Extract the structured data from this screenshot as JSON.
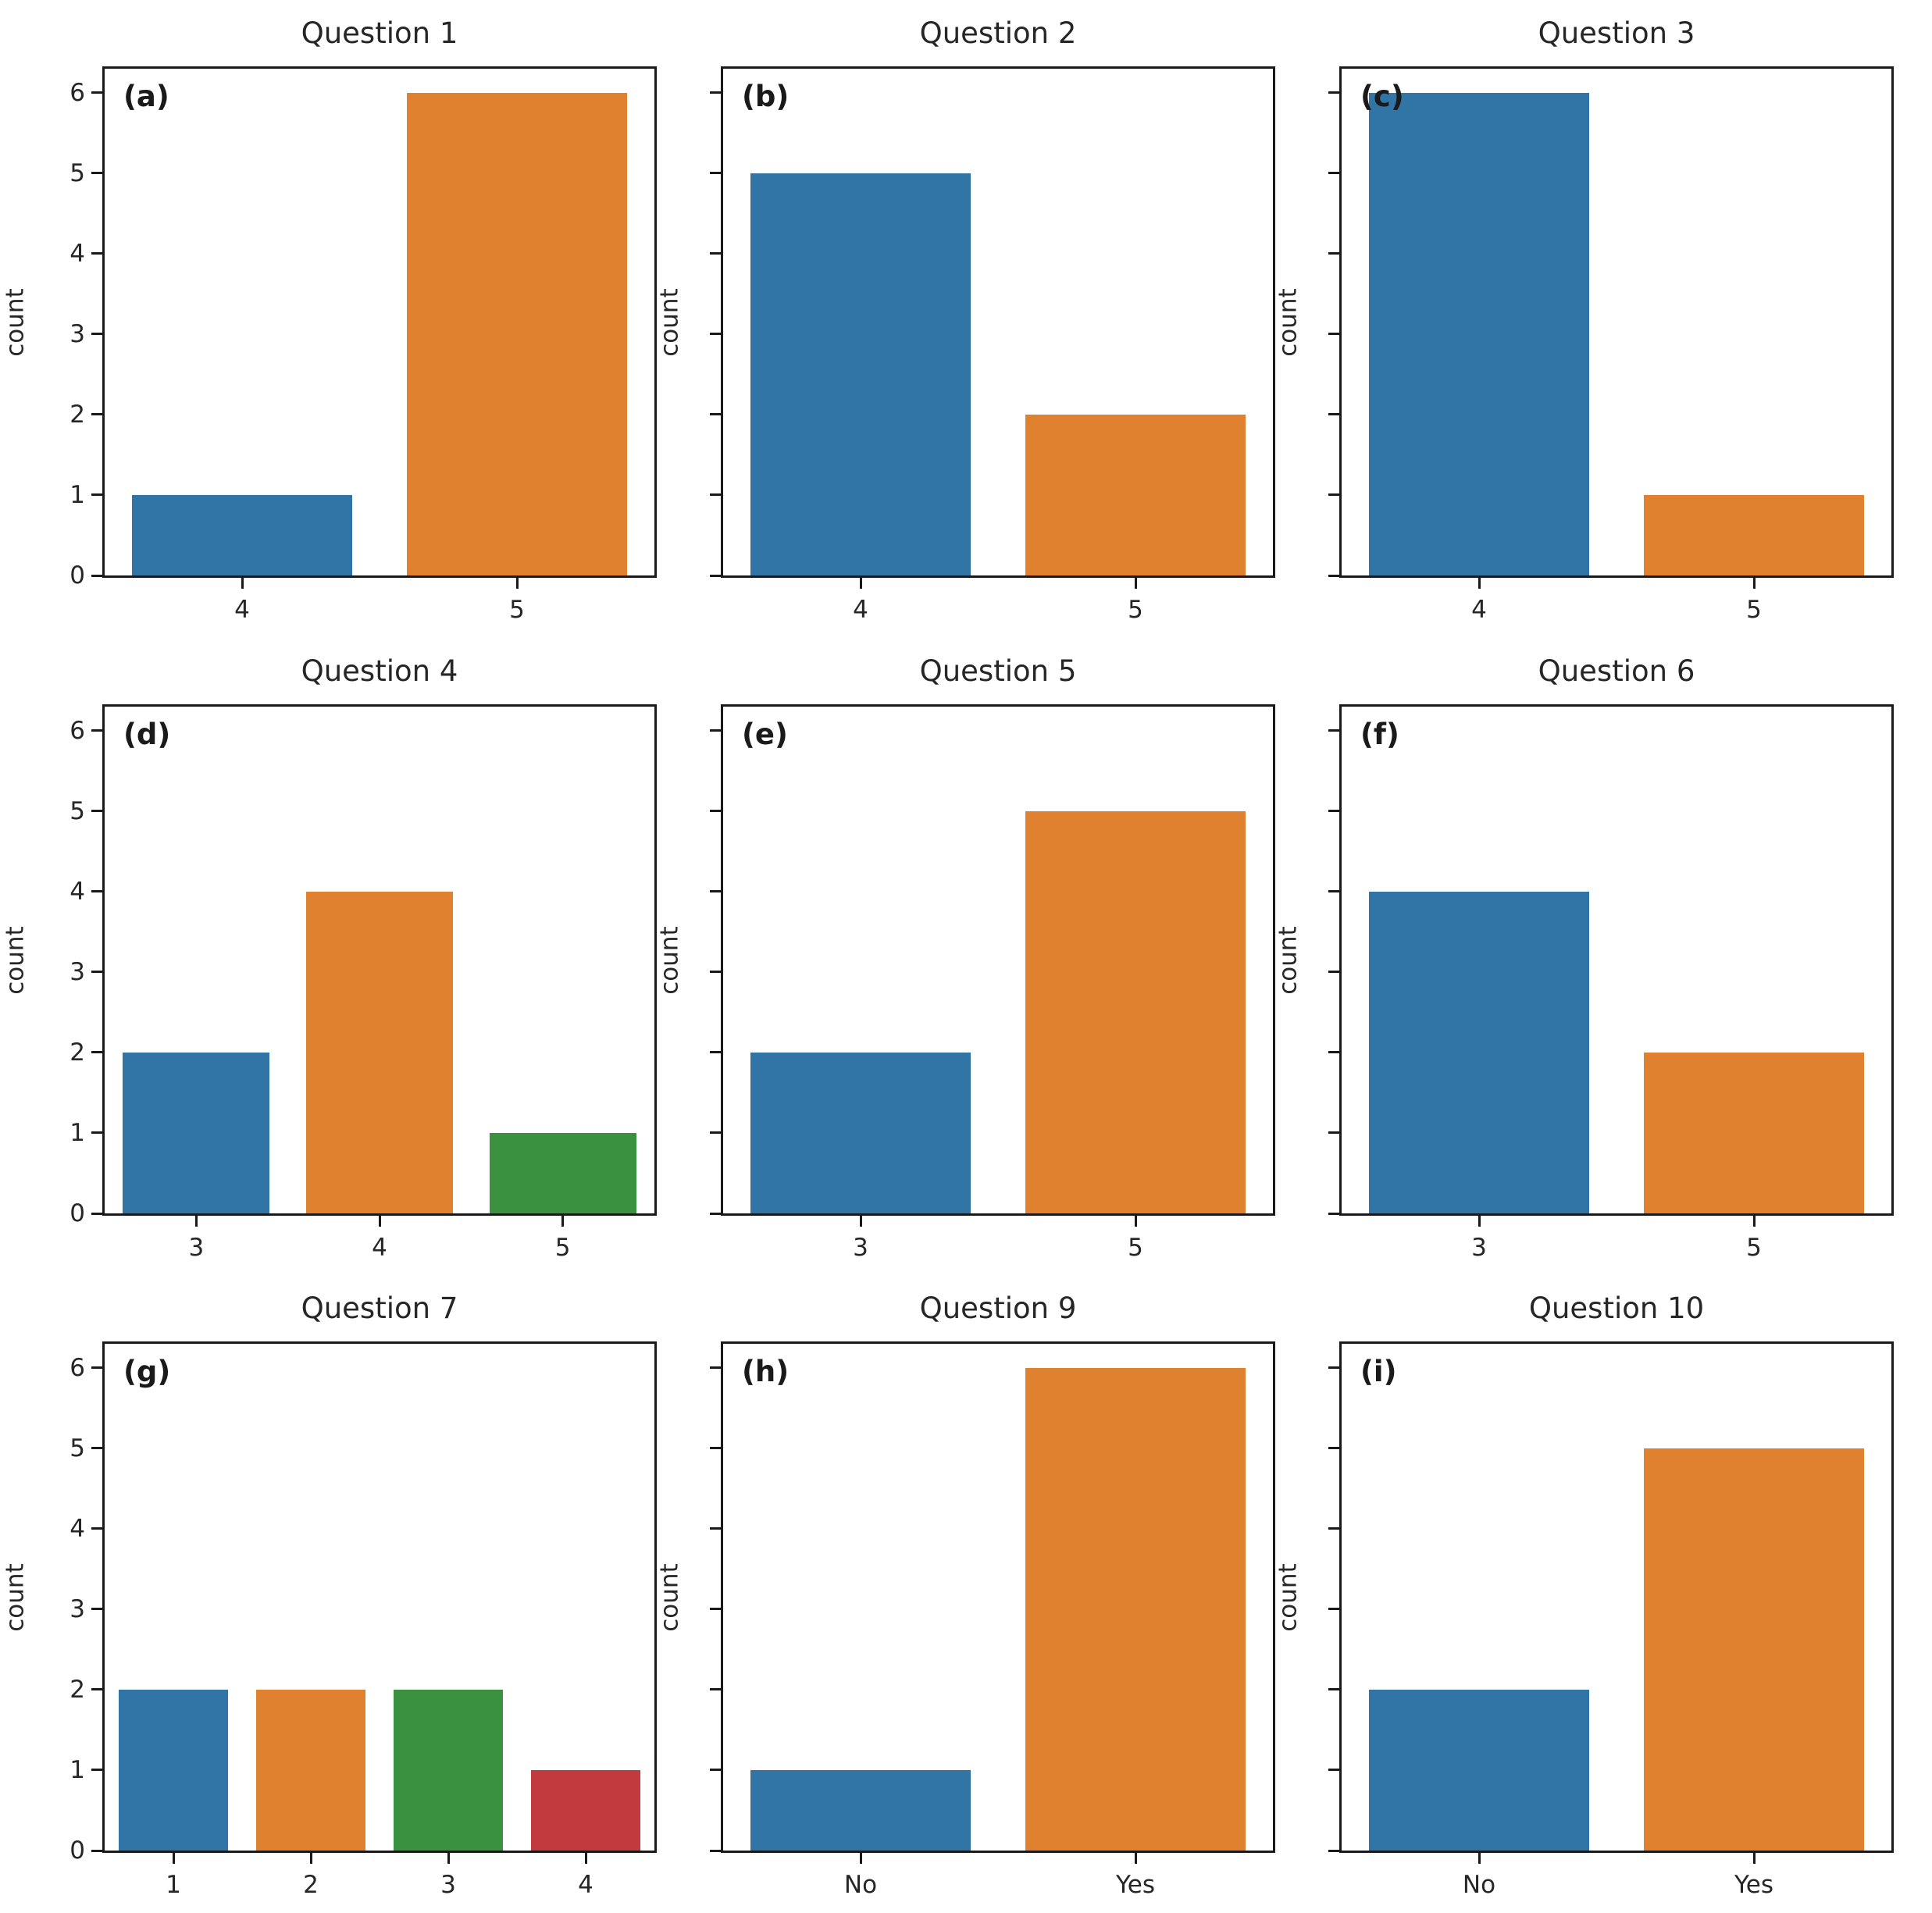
{
  "figure": {
    "background": "#ffffff",
    "axis_color": "#1a1a1a",
    "text_color": "#262626",
    "bar_palette": [
      "#3174a6",
      "#e0812f",
      "#3a9240",
      "#c03a3e"
    ],
    "ylabel_text": "count"
  },
  "yticks": [
    "0",
    "1",
    "2",
    "3",
    "4",
    "5",
    "6"
  ],
  "chart_data": [
    {
      "type": "bar",
      "panel_label": "(a)",
      "title": "Question 1",
      "categories": [
        "4",
        "5"
      ],
      "values": [
        1,
        6
      ],
      "ylabel": "count",
      "ylim": [
        0,
        6.3
      ],
      "yticks": [
        0,
        1,
        2,
        3,
        4,
        5,
        6
      ],
      "show_ytick_labels": true,
      "grid": false,
      "legend": "none"
    },
    {
      "type": "bar",
      "panel_label": "(b)",
      "title": "Question 2",
      "categories": [
        "4",
        "5"
      ],
      "values": [
        5,
        2
      ],
      "ylabel": "count",
      "ylim": [
        0,
        6.3
      ],
      "yticks": [
        0,
        1,
        2,
        3,
        4,
        5,
        6
      ],
      "show_ytick_labels": false,
      "grid": false,
      "legend": "none"
    },
    {
      "type": "bar",
      "panel_label": "(c)",
      "title": "Question 3",
      "categories": [
        "4",
        "5"
      ],
      "values": [
        6,
        1
      ],
      "ylabel": "count",
      "ylim": [
        0,
        6.3
      ],
      "yticks": [
        0,
        1,
        2,
        3,
        4,
        5,
        6
      ],
      "show_ytick_labels": false,
      "grid": false,
      "legend": "none"
    },
    {
      "type": "bar",
      "panel_label": "(d)",
      "title": "Question 4",
      "categories": [
        "3",
        "4",
        "5"
      ],
      "values": [
        2,
        4,
        1
      ],
      "ylabel": "count",
      "ylim": [
        0,
        6.3
      ],
      "yticks": [
        0,
        1,
        2,
        3,
        4,
        5,
        6
      ],
      "show_ytick_labels": true,
      "grid": false,
      "legend": "none"
    },
    {
      "type": "bar",
      "panel_label": "(e)",
      "title": "Question 5",
      "categories": [
        "3",
        "5"
      ],
      "values": [
        2,
        5
      ],
      "ylabel": "count",
      "ylim": [
        0,
        6.3
      ],
      "yticks": [
        0,
        1,
        2,
        3,
        4,
        5,
        6
      ],
      "show_ytick_labels": false,
      "grid": false,
      "legend": "none"
    },
    {
      "type": "bar",
      "panel_label": "(f)",
      "title": "Question 6",
      "categories": [
        "3",
        "5"
      ],
      "values": [
        4,
        2
      ],
      "ylabel": "count",
      "ylim": [
        0,
        6.3
      ],
      "yticks": [
        0,
        1,
        2,
        3,
        4,
        5,
        6
      ],
      "show_ytick_labels": false,
      "grid": false,
      "legend": "none"
    },
    {
      "type": "bar",
      "panel_label": "(g)",
      "title": "Question 7",
      "categories": [
        "1",
        "2",
        "3",
        "4"
      ],
      "values": [
        2,
        2,
        2,
        1
      ],
      "ylabel": "count",
      "ylim": [
        0,
        6.3
      ],
      "yticks": [
        0,
        1,
        2,
        3,
        4,
        5,
        6
      ],
      "show_ytick_labels": true,
      "grid": false,
      "legend": "none"
    },
    {
      "type": "bar",
      "panel_label": "(h)",
      "title": "Question 9",
      "categories": [
        "No",
        "Yes"
      ],
      "values": [
        1,
        6
      ],
      "ylabel": "count",
      "ylim": [
        0,
        6.3
      ],
      "yticks": [
        0,
        1,
        2,
        3,
        4,
        5,
        6
      ],
      "show_ytick_labels": false,
      "grid": false,
      "legend": "none"
    },
    {
      "type": "bar",
      "panel_label": "(i)",
      "title": "Question 10",
      "categories": [
        "No",
        "Yes"
      ],
      "values": [
        2,
        5
      ],
      "ylabel": "count",
      "ylim": [
        0,
        6.3
      ],
      "yticks": [
        0,
        1,
        2,
        3,
        4,
        5,
        6
      ],
      "show_ytick_labels": false,
      "grid": false,
      "legend": "none"
    }
  ]
}
